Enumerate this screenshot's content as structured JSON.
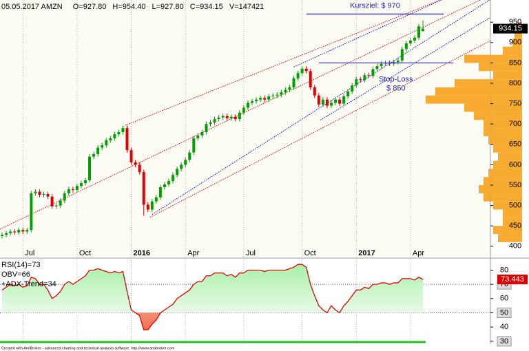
{
  "header": [
    "05.05.2017 AMZN",
    "O=927.80",
    "H=954.40",
    "L=927.80",
    "C=934.15",
    "V=147421"
  ],
  "footer": "Created with AmiBroker - advanced charting and technical analysis software. http://www.amibroker.com",
  "chart_data": [
    {
      "type": "candlestick",
      "categories": [
        null,
        null,
        null,
        null,
        null,
        "Jul",
        null,
        null,
        null,
        null,
        null,
        null,
        null,
        null,
        null,
        null,
        null,
        null,
        "Oct",
        null,
        null,
        null,
        null,
        null,
        null,
        null,
        null,
        null,
        null,
        null,
        null,
        "2016",
        null,
        null,
        null,
        null,
        null,
        null,
        null,
        null,
        null,
        null,
        null,
        null,
        "Apr",
        null,
        null,
        null,
        null,
        null,
        null,
        null,
        null,
        null,
        null,
        null,
        null,
        null,
        "Jul",
        null,
        null,
        null,
        null,
        null,
        null,
        null,
        null,
        null,
        null,
        null,
        null,
        null,
        "Oct",
        null,
        null,
        null,
        null,
        null,
        null,
        null,
        null,
        null,
        null,
        null,
        null,
        "2017",
        null,
        null,
        null,
        null,
        null,
        null,
        null,
        null,
        null,
        null,
        null,
        null,
        "Apr",
        null,
        null,
        null
      ],
      "open": [
        425,
        428,
        432,
        436,
        434,
        440,
        436,
        440,
        530,
        534,
        526,
        528,
        522,
        498,
        500,
        512,
        530,
        540,
        538,
        548,
        555,
        562,
        620,
        626,
        642,
        648,
        660,
        665,
        675,
        680,
        690,
        636,
        606,
        600,
        582,
        502,
        490,
        510,
        520,
        545,
        552,
        560,
        575,
        590,
        600,
        612,
        630,
        665,
        672,
        680,
        700,
        704,
        712,
        716,
        720,
        714,
        718,
        712,
        728,
        740,
        752,
        756,
        760,
        764,
        760,
        768,
        770,
        772,
        778,
        784,
        790,
        812,
        825,
        836,
        830,
        790,
        770,
        748,
        760,
        745,
        752,
        760,
        750,
        768,
        780,
        795,
        810,
        808,
        820,
        818,
        835,
        842,
        848,
        850,
        848,
        852,
        856,
        884,
        898,
        905,
        912,
        927.8
      ],
      "high": [
        434,
        438,
        442,
        442,
        446,
        446,
        446,
        536,
        540,
        540,
        534,
        534,
        528,
        506,
        518,
        536,
        546,
        546,
        554,
        561,
        568,
        626,
        632,
        648,
        654,
        666,
        671,
        681,
        686,
        696,
        696,
        642,
        612,
        606,
        588,
        508,
        516,
        526,
        551,
        558,
        566,
        581,
        596,
        606,
        618,
        636,
        671,
        678,
        686,
        706,
        710,
        718,
        722,
        726,
        726,
        724,
        724,
        734,
        746,
        758,
        762,
        766,
        770,
        770,
        774,
        776,
        778,
        784,
        790,
        796,
        818,
        831,
        842,
        842,
        836,
        796,
        776,
        766,
        766,
        758,
        766,
        766,
        774,
        786,
        801,
        816,
        816,
        826,
        826,
        841,
        848,
        854,
        856,
        856,
        858,
        862,
        890,
        904,
        911,
        918,
        946,
        954.4
      ],
      "low": [
        419,
        422,
        426,
        428,
        428,
        430,
        430,
        434,
        524,
        520,
        520,
        516,
        492,
        492,
        494,
        506,
        524,
        532,
        532,
        542,
        549,
        556,
        614,
        620,
        636,
        642,
        654,
        659,
        669,
        674,
        630,
        600,
        594,
        576,
        475,
        484,
        484,
        504,
        514,
        539,
        546,
        554,
        569,
        584,
        594,
        606,
        624,
        659,
        666,
        674,
        694,
        698,
        706,
        710,
        708,
        708,
        706,
        706,
        722,
        734,
        746,
        750,
        754,
        754,
        754,
        762,
        764,
        766,
        772,
        778,
        784,
        806,
        819,
        824,
        784,
        764,
        742,
        742,
        739,
        739,
        746,
        744,
        744,
        762,
        774,
        789,
        802,
        802,
        812,
        812,
        829,
        836,
        842,
        842,
        842,
        846,
        850,
        878,
        892,
        899,
        906,
        927.8
      ],
      "close": [
        428,
        432,
        436,
        434,
        440,
        436,
        440,
        530,
        534,
        526,
        528,
        522,
        498,
        500,
        512,
        530,
        540,
        538,
        548,
        555,
        562,
        620,
        626,
        642,
        648,
        660,
        665,
        675,
        680,
        690,
        636,
        606,
        600,
        582,
        502,
        490,
        510,
        520,
        545,
        552,
        560,
        575,
        590,
        600,
        612,
        630,
        665,
        672,
        680,
        700,
        704,
        712,
        716,
        720,
        714,
        718,
        712,
        728,
        740,
        752,
        756,
        760,
        764,
        760,
        768,
        770,
        772,
        778,
        784,
        790,
        812,
        825,
        836,
        830,
        790,
        770,
        748,
        760,
        745,
        752,
        760,
        750,
        768,
        780,
        795,
        810,
        808,
        820,
        818,
        835,
        842,
        848,
        850,
        848,
        852,
        856,
        884,
        898,
        905,
        912,
        940,
        934.15
      ],
      "last_label": "934.15",
      "up_color": "#00a000",
      "down_color": "#e00000",
      "ylim": [
        376,
        996
      ],
      "yticks": [
        400,
        450,
        500,
        550,
        600,
        650,
        700,
        750,
        800,
        850,
        900,
        950
      ],
      "trendlines": [
        {
          "color": "#e00000",
          "points": [
            [
              29.6,
              697
            ],
            [
              102.8,
              995
            ]
          ]
        },
        {
          "color": "#e00000",
          "points": [
            [
              -0.5,
              442
            ],
            [
              75.5,
              813
            ]
          ]
        },
        {
          "color": "#e00000",
          "points": [
            [
              35.5,
              471
            ],
            [
              116.9,
              903
            ]
          ]
        },
        {
          "color": "#0000e0",
          "points": [
            [
              36,
              478
            ],
            [
              116.9,
              1004
            ]
          ]
        },
        {
          "color": "#0000e0",
          "points": [
            [
              70,
              840
            ],
            [
              105.3,
              1004
            ]
          ]
        },
        {
          "color": "#0000e0",
          "points": [
            [
              76.4,
              710
            ],
            [
              116.9,
              960
            ]
          ]
        }
      ],
      "annotations": [
        {
          "text": [
            "Kursziel: $ 970"
          ],
          "value": 970,
          "start": 73,
          "end": 106,
          "color": "#2020d0"
        },
        {
          "text": [
            "Stop-Loss",
            "$ 850"
          ],
          "value": 850,
          "start": 76,
          "end": 108.3,
          "color": "#2020d0"
        }
      ],
      "volume_profile": {
        "color": "#f7a21b",
        "prices": [
          420,
          440,
          460,
          480,
          500,
          520,
          540,
          560,
          580,
          600,
          620,
          640,
          660,
          680,
          700,
          720,
          740,
          760,
          780,
          800,
          820,
          840,
          860,
          880,
          900,
          920,
          940
        ],
        "values": [
          25,
          30,
          20,
          20,
          30,
          40,
          45,
          40,
          35,
          30,
          25,
          30,
          35,
          40,
          40,
          50,
          60,
          100,
          90,
          70,
          30,
          45,
          60,
          20,
          10,
          8,
          5
        ]
      }
    },
    {
      "type": "line",
      "series": [
        {
          "name": "RSI(14)=73",
          "color": "#e00000",
          "values": [
            66,
            68,
            70,
            69,
            70,
            68,
            69,
            75,
            74,
            70,
            70,
            66,
            60,
            62,
            65,
            70,
            72,
            70,
            72,
            74,
            76,
            80,
            80,
            81,
            80,
            79,
            78,
            79,
            78,
            79,
            65,
            52,
            50,
            48,
            38,
            38,
            42,
            45,
            50,
            52,
            54,
            56,
            60,
            62,
            64,
            66,
            70,
            72,
            72,
            76,
            76,
            78,
            78,
            78,
            76,
            77,
            75,
            78,
            78,
            80,
            80,
            80,
            80,
            79,
            80,
            80,
            80,
            80,
            80,
            81,
            82,
            84,
            84,
            82,
            70,
            62,
            55,
            52,
            50,
            55,
            52,
            50,
            55,
            58,
            62,
            66,
            66,
            68,
            67,
            70,
            70,
            71,
            71,
            70,
            71,
            71,
            74,
            74,
            74,
            73,
            75,
            73.443
          ]
        }
      ],
      "legend_extra": [
        "OBV=66",
        "+ADX-Trend=34"
      ],
      "last_label": "73.443",
      "ylim": [
        28,
        87
      ],
      "yticks": [
        30,
        40,
        50,
        60,
        70,
        80
      ],
      "boxed_yticks": [
        70,
        50,
        30
      ],
      "levels": [
        70,
        50
      ]
    }
  ]
}
